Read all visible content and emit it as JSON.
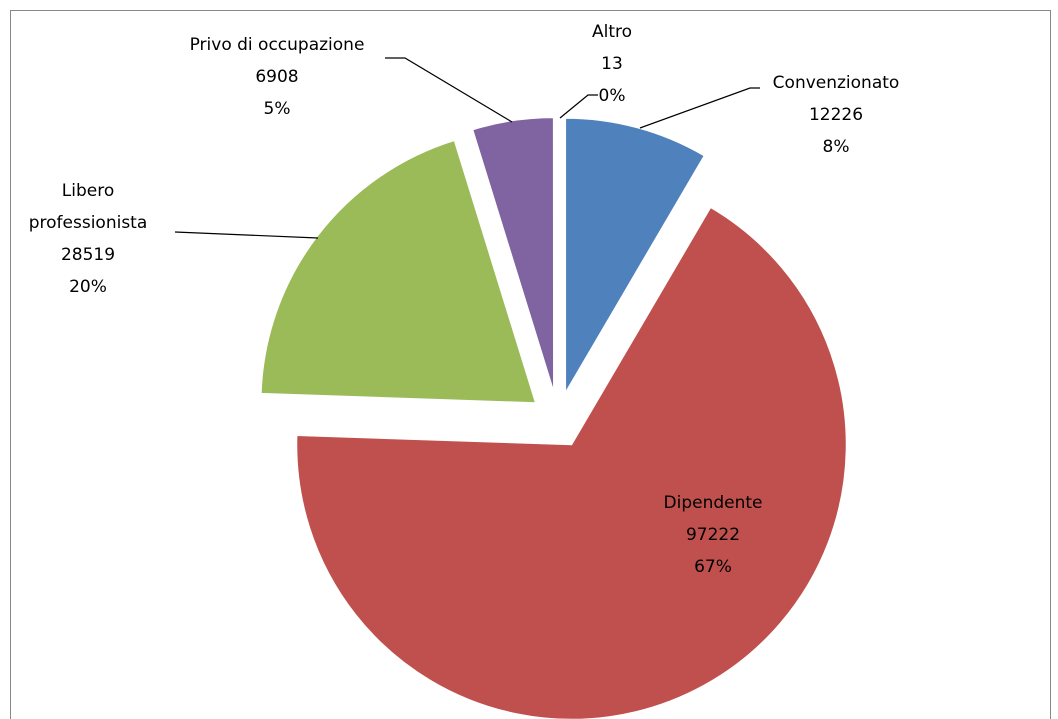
{
  "chart_data": {
    "type": "pie",
    "categories": [
      "Convenzionato",
      "Dipendente",
      "Libero professionista",
      "Privo di occupazione",
      "Altro"
    ],
    "values": [
      12226,
      97222,
      28519,
      6908,
      13
    ],
    "percent_labels": [
      "8%",
      "67%",
      "20%",
      "5%",
      "0%"
    ],
    "colors": [
      "#4f81bd",
      "#c0504d",
      "#9bbb59",
      "#8064a2",
      "#4bacc6"
    ]
  }
}
